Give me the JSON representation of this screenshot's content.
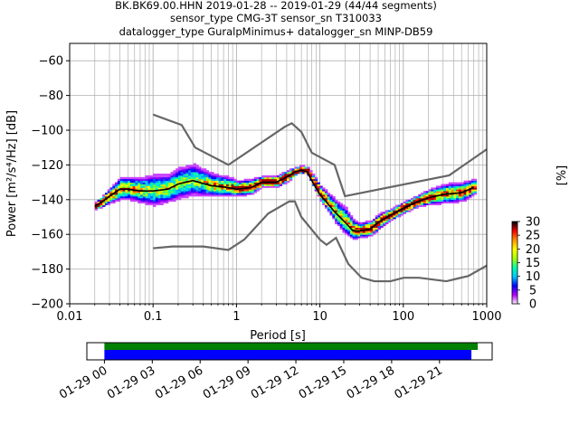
{
  "chart_data": [
    {
      "type": "heatmap",
      "title_lines": [
        "BK.BK69.00.HHN   2019-01-28 -- 2019-01-29  (44/44 segments)",
        "sensor_type CMG-3T sensor_sn T310033",
        "datalogger_type GuralpMinimus+ datalogger_sn MINP-DB59"
      ],
      "xlabel": "Period [s]",
      "ylabel": "Power [m²/s⁴/Hz] [dB]",
      "x_scale": "log",
      "xlim": [
        0.01,
        1000
      ],
      "ylim": [
        -200,
        -50
      ],
      "x_ticks": [
        {
          "v": 0.01,
          "label": "0.01"
        },
        {
          "v": 0.1,
          "label": "0.1"
        },
        {
          "v": 1,
          "label": "1"
        },
        {
          "v": 10,
          "label": "10"
        },
        {
          "v": 100,
          "label": "100"
        },
        {
          "v": 1000,
          "label": "1000"
        }
      ],
      "y_ticks": [
        {
          "v": -60,
          "label": "−60"
        },
        {
          "v": -80,
          "label": "−80"
        },
        {
          "v": -100,
          "label": "−100"
        },
        {
          "v": -120,
          "label": "−120"
        },
        {
          "v": -140,
          "label": "−140"
        },
        {
          "v": -160,
          "label": "−160"
        },
        {
          "v": -180,
          "label": "−180"
        },
        {
          "v": -200,
          "label": "−200"
        }
      ],
      "grid": true,
      "colorbar": {
        "label": "[%]",
        "min": 0,
        "max": 30,
        "ticks": [
          {
            "v": 0,
            "label": "0"
          },
          {
            "v": 5,
            "label": "5"
          },
          {
            "v": 10,
            "label": "10"
          },
          {
            "v": 15,
            "label": "15"
          },
          {
            "v": 20,
            "label": "20"
          },
          {
            "v": 25,
            "label": "25"
          },
          {
            "v": 30,
            "label": "30"
          }
        ],
        "colors": [
          "#ffffff",
          "#b400ff",
          "#0000ff",
          "#00c8ff",
          "#00ffaa",
          "#aaff00",
          "#ffff00",
          "#ff9600",
          "#ff0000",
          "#000000"
        ]
      },
      "noise_model_high": {
        "x": [
          0.1,
          0.22,
          0.32,
          0.8,
          3.8,
          4.6,
          6.0,
          8.0,
          15.0,
          20.0,
          354.8,
          1000
        ],
        "y": [
          -91,
          -97,
          -110,
          -120,
          -98,
          -96,
          -101,
          -113,
          -120,
          -138,
          -126,
          -111
        ]
      },
      "noise_model_low": {
        "x": [
          0.1,
          0.17,
          0.4,
          0.8,
          1.24,
          2.4,
          4.3,
          5.0,
          6.0,
          10.0,
          12.0,
          15.6,
          21.9,
          31.6,
          45.0,
          70.0,
          101.0,
          154.0,
          328.0,
          600.0,
          1000.0
        ],
        "y": [
          -168,
          -167,
          -167,
          -169,
          -163,
          -148,
          -141,
          -141,
          -150,
          -163,
          -166,
          -162,
          -177,
          -185,
          -187,
          -187,
          -185,
          -185,
          -187,
          -184,
          -178
        ]
      },
      "mean_psd": {
        "x": [
          0.02,
          0.025,
          0.03,
          0.04,
          0.05,
          0.07,
          0.1,
          0.15,
          0.2,
          0.3,
          0.5,
          0.8,
          1.0,
          1.5,
          2.0,
          3.0,
          4.0,
          5.0,
          6.0,
          7.0,
          8.0,
          10.0,
          15.0,
          20.0,
          25.0,
          30.0,
          40.0,
          50.0,
          70.0,
          100.0,
          150.0,
          200.0,
          300.0,
          500.0,
          700.0
        ],
        "y": [
          -144,
          -141,
          -138,
          -134,
          -134,
          -135,
          -135,
          -134,
          -131,
          -129,
          -132,
          -133,
          -134,
          -133,
          -130,
          -130,
          -127,
          -124,
          -123,
          -124,
          -129,
          -137,
          -147,
          -153,
          -158,
          -158,
          -157,
          -153,
          -149,
          -145,
          -141,
          -139,
          -137,
          -136,
          -133
        ]
      },
      "psd_band": {
        "x": [
          0.02,
          0.03,
          0.04,
          0.06,
          0.1,
          0.15,
          0.2,
          0.3,
          0.5,
          0.8,
          1.0,
          1.5,
          2.0,
          3.0,
          4.0,
          5.0,
          6.0,
          7.0,
          8.0,
          10.0,
          15.0,
          20.0,
          25.0,
          30.0,
          40.0,
          50.0,
          70.0,
          100.0,
          150.0,
          200.0,
          300.0,
          500.0,
          700.0
        ],
        "spread": [
          2,
          4,
          6,
          6,
          8,
          7,
          8,
          8,
          6,
          5,
          4,
          4,
          3,
          3,
          3,
          2,
          2,
          2,
          3,
          4,
          6,
          7,
          5,
          4,
          4,
          4,
          3,
          3,
          3,
          4,
          5,
          5,
          4
        ]
      }
    },
    {
      "type": "bar",
      "x_ticks": [
        {
          "v": 0,
          "label": "01-29 00"
        },
        {
          "v": 3,
          "label": "01-29 03"
        },
        {
          "v": 6,
          "label": "01-29 06"
        },
        {
          "v": 9,
          "label": "01-29 09"
        },
        {
          "v": 12,
          "label": "01-29 12"
        },
        {
          "v": 15,
          "label": "01-29 15"
        },
        {
          "v": 18,
          "label": "01-29 18"
        },
        {
          "v": 21,
          "label": "01-29 21"
        }
      ],
      "xlim_hours": [
        -1.1,
        24.3
      ],
      "series": [
        {
          "color": "#008000",
          "start": 0.0,
          "end": 23.4
        },
        {
          "color": "#0000ff",
          "start": 0.0,
          "end": 23.0
        }
      ]
    }
  ]
}
